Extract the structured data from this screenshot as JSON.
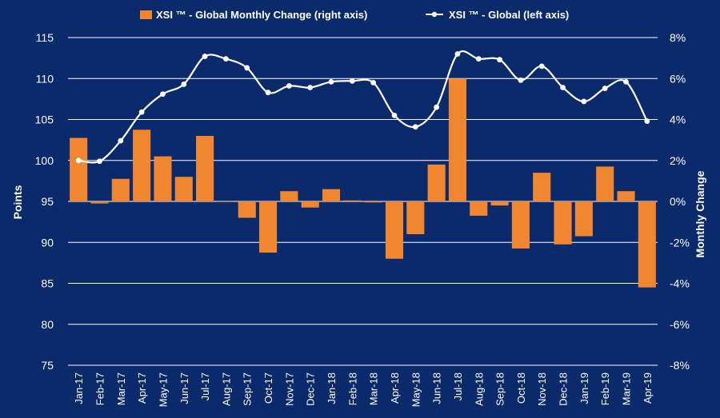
{
  "chart_data": {
    "type": "bar+line",
    "categories": [
      "Jan-17",
      "Feb-17",
      "Mar-17",
      "Apr-17",
      "May-17",
      "Jun-17",
      "Jul-17",
      "Aug-17",
      "Sep-17",
      "Oct-17",
      "Nov-17",
      "Dec-17",
      "Jan-18",
      "Feb-18",
      "Mar-18",
      "Apr-18",
      "May-18",
      "Jun-18",
      "Jul-18",
      "Aug-18",
      "Sep-18",
      "Oct-18",
      "Nov-18",
      "Dec-18",
      "Jan-19",
      "Feb-19",
      "Mar-19",
      "Apr-19"
    ],
    "series": [
      {
        "name": "XSI ™ - Global Monthly Change (right axis)",
        "type": "bar",
        "axis": "right",
        "color": "#f0862f",
        "values": [
          3.1,
          -0.1,
          1.1,
          3.5,
          2.2,
          1.2,
          3.2,
          0.0,
          -0.8,
          -2.5,
          0.5,
          -0.3,
          0.6,
          0.05,
          -0.05,
          -2.8,
          -1.6,
          1.8,
          6.0,
          -0.7,
          -0.2,
          -2.3,
          1.4,
          -2.1,
          -1.7,
          1.7,
          0.5,
          -4.2
        ]
      },
      {
        "name": "XSI ™ - Global (left axis)",
        "type": "line",
        "axis": "left",
        "color": "#ffffff",
        "values": [
          100.0,
          99.9,
          102.4,
          105.9,
          108.1,
          109.3,
          112.7,
          112.4,
          111.3,
          108.3,
          109.1,
          108.9,
          109.6,
          109.7,
          109.5,
          105.5,
          104.1,
          106.5,
          113.0,
          112.4,
          112.3,
          109.8,
          111.5,
          108.9,
          107.2,
          108.8,
          109.6,
          104.8
        ]
      }
    ],
    "ylabel": "Points",
    "y2label": "Monthly Change",
    "ylim": [
      75,
      115
    ],
    "yticks": [
      75,
      80,
      85,
      90,
      95,
      100,
      105,
      110,
      115
    ],
    "y2lim": [
      -8,
      8
    ],
    "y2ticks": [
      "-8%",
      "-6%",
      "-4%",
      "-2%",
      "0%",
      "2%",
      "4%",
      "6%",
      "8%"
    ],
    "grid": true,
    "legend_position": "top"
  }
}
